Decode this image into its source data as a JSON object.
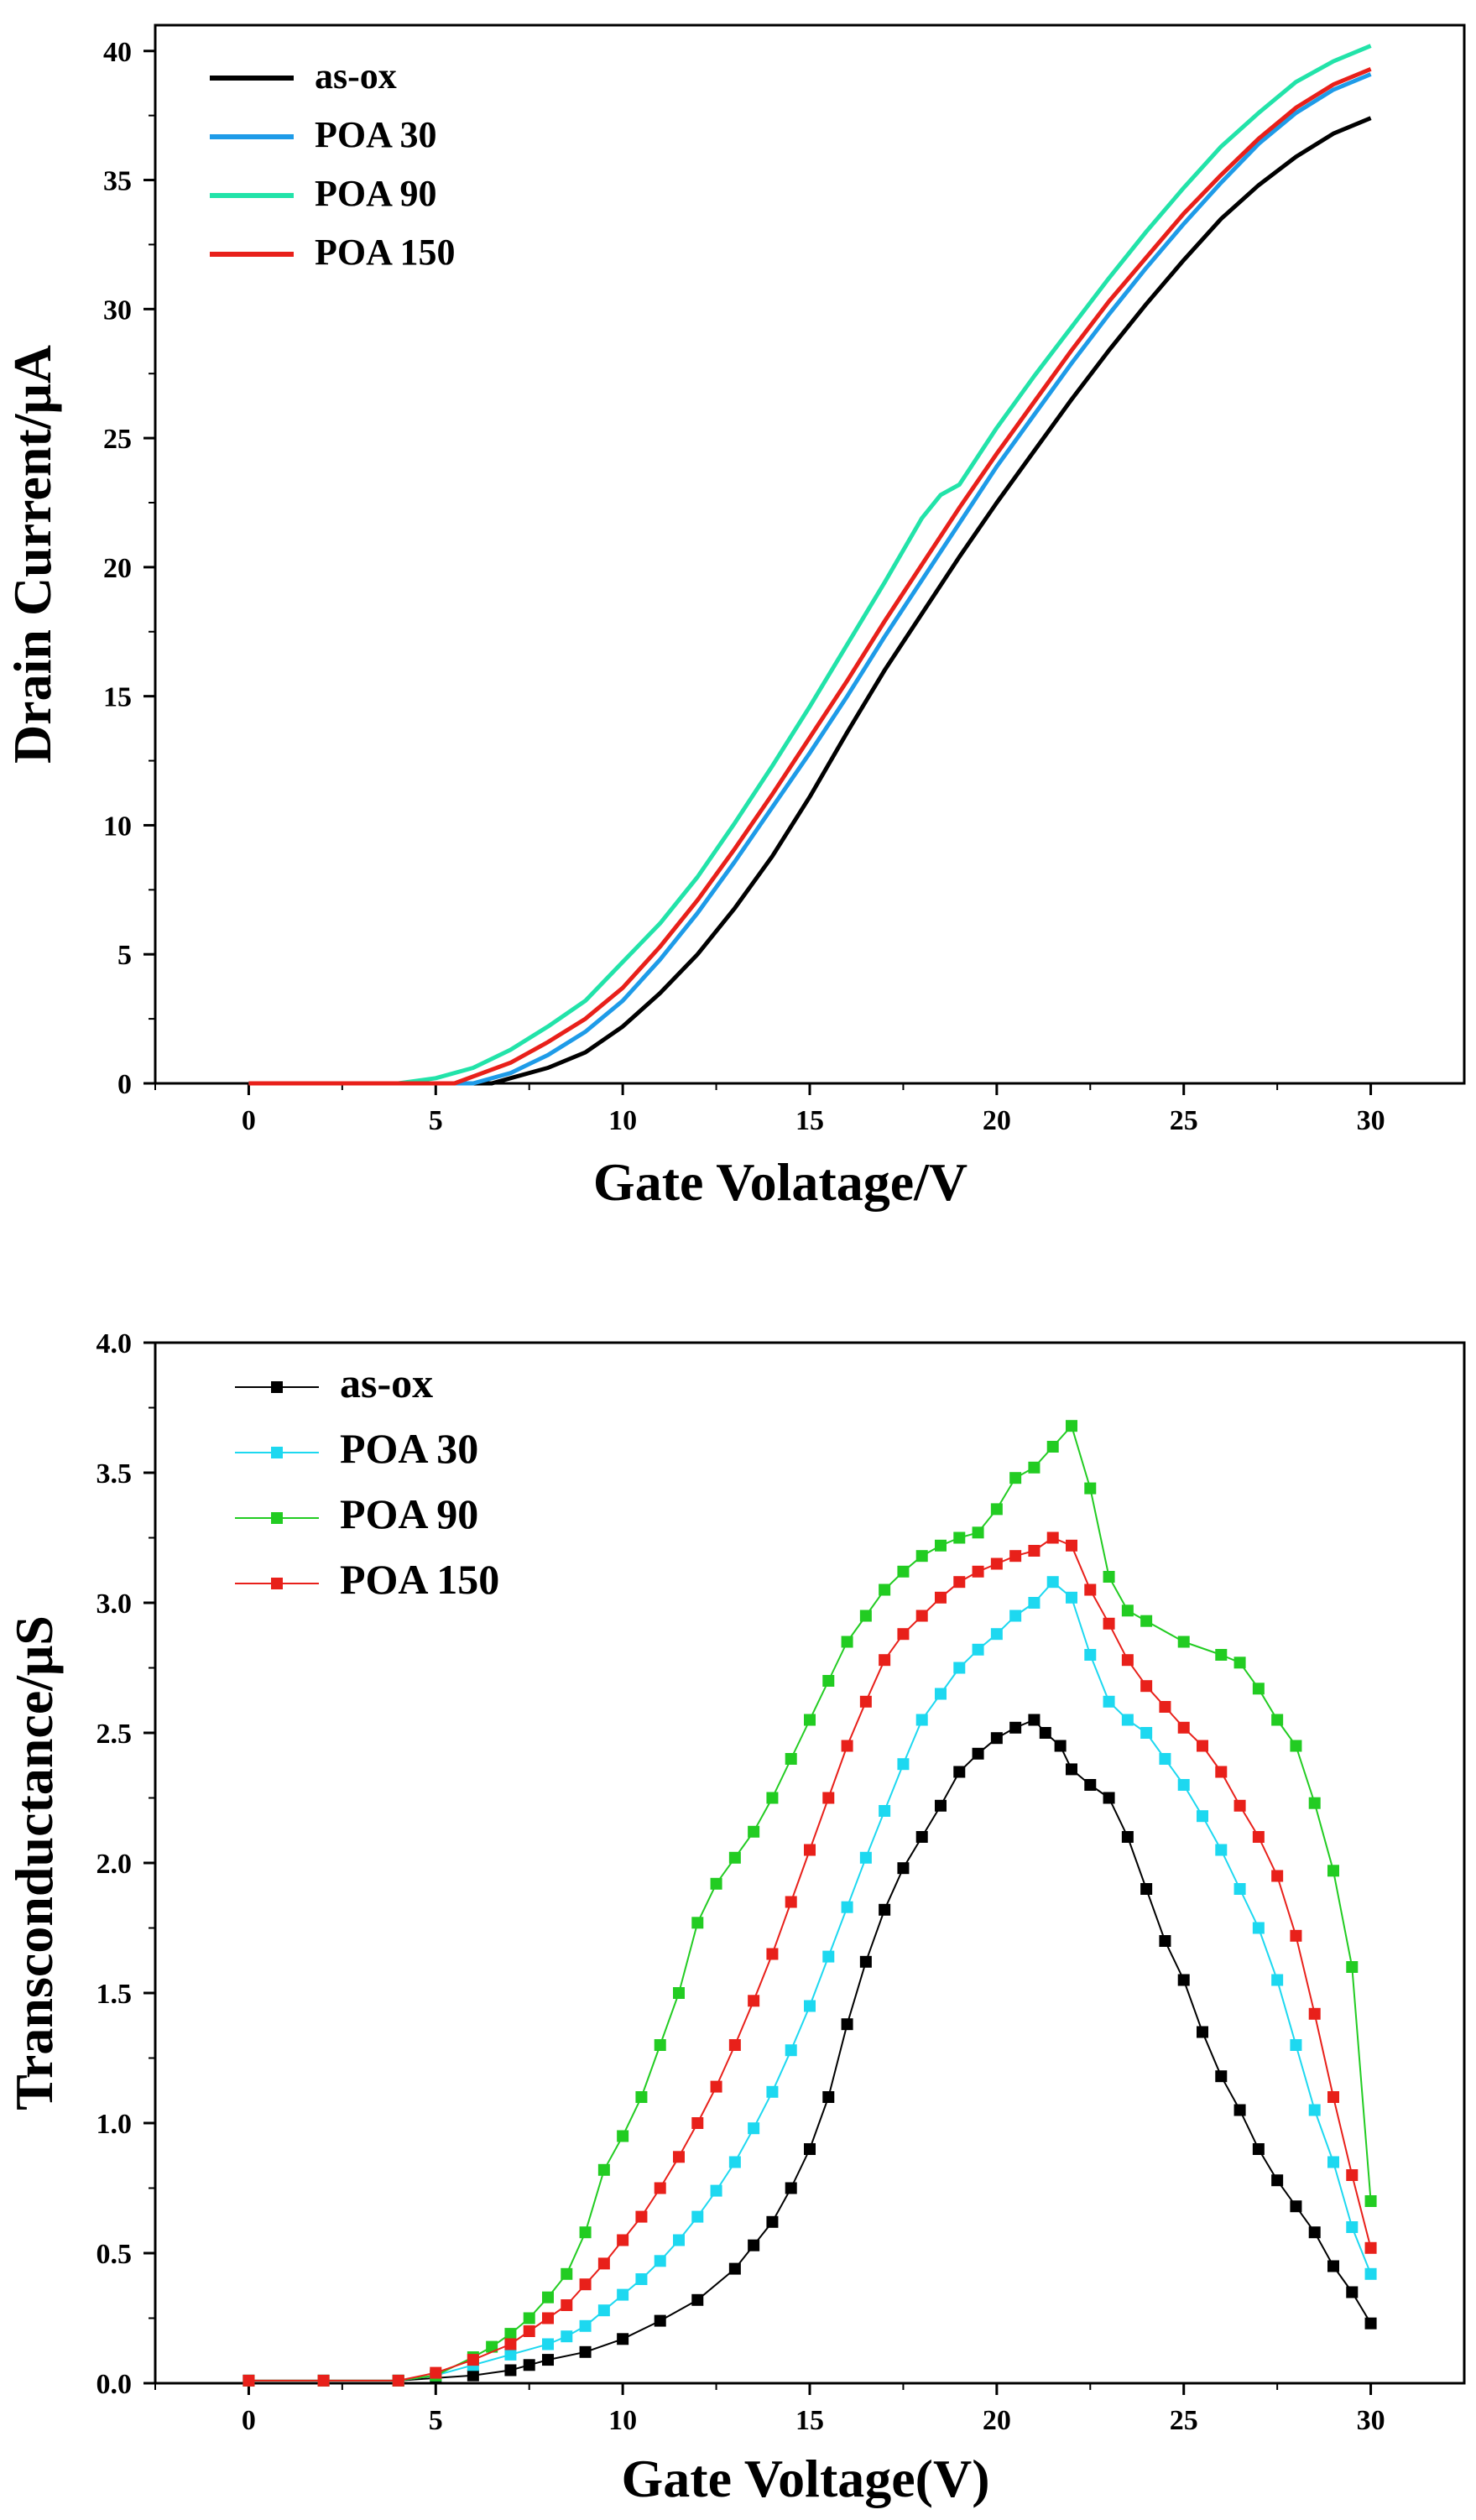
{
  "chart_data": [
    {
      "type": "line",
      "title": "",
      "xlabel": "Gate Volatage/V",
      "ylabel": "Drain Current/μA",
      "xlim": [
        -2.5,
        32.5
      ],
      "ylim": [
        0,
        41
      ],
      "xticks": [
        "0",
        "5",
        "10",
        "15",
        "20",
        "25",
        "30"
      ],
      "yticks": [
        "0",
        "5",
        "10",
        "15",
        "20",
        "25",
        "30",
        "35",
        "40"
      ],
      "legend_position": "top-left",
      "series": [
        {
          "name": "as-ox",
          "color": "#000000",
          "x": [
            0,
            4,
            6.5,
            7,
            8,
            9,
            10,
            11,
            12,
            13,
            14,
            15,
            16,
            17,
            18,
            19,
            20,
            21,
            22,
            23,
            24,
            25,
            26,
            27,
            28,
            29,
            30
          ],
          "y": [
            0,
            0,
            0,
            0.2,
            0.6,
            1.2,
            2.2,
            3.5,
            5,
            6.8,
            8.8,
            11.1,
            13.6,
            16.0,
            18.2,
            20.4,
            22.5,
            24.5,
            26.5,
            28.4,
            30.2,
            31.9,
            33.5,
            34.8,
            35.9,
            36.8,
            37.4
          ]
        },
        {
          "name": "POA 30",
          "color": "#1E9BE8",
          "x": [
            0,
            4,
            6,
            7,
            8,
            9,
            10,
            11,
            12,
            13,
            14,
            15,
            16,
            17,
            18,
            19,
            20,
            21,
            22,
            23,
            24,
            25,
            26,
            27,
            28,
            29,
            30
          ],
          "y": [
            0,
            0,
            0,
            0.4,
            1.1,
            2.0,
            3.2,
            4.8,
            6.6,
            8.6,
            10.7,
            12.8,
            15.0,
            17.3,
            19.5,
            21.7,
            23.9,
            25.9,
            27.9,
            29.8,
            31.6,
            33.3,
            34.9,
            36.4,
            37.6,
            38.5,
            39.1
          ]
        },
        {
          "name": "POA 90",
          "color": "#22E3A9",
          "x": [
            0,
            4,
            5,
            6,
            7,
            8,
            9,
            10,
            11,
            12,
            13,
            14,
            15,
            16,
            17,
            18,
            18.5,
            19,
            20,
            21,
            22,
            23,
            24,
            25,
            26,
            27,
            28,
            29,
            30
          ],
          "y": [
            0,
            0,
            0.2,
            0.6,
            1.3,
            2.2,
            3.2,
            4.7,
            6.2,
            8.0,
            10.1,
            12.3,
            14.6,
            17.0,
            19.4,
            21.9,
            22.8,
            23.2,
            25.4,
            27.4,
            29.3,
            31.2,
            33.0,
            34.7,
            36.3,
            37.6,
            38.8,
            39.6,
            40.2
          ]
        },
        {
          "name": "POA 150",
          "color": "#E8201A",
          "x": [
            0,
            4,
            5.5,
            7,
            8,
            9,
            10,
            11,
            12,
            13,
            14,
            15,
            16,
            17,
            18,
            19,
            20,
            21,
            22,
            23,
            24,
            25,
            26,
            27,
            28,
            29,
            30
          ],
          "y": [
            0,
            0,
            0,
            0.8,
            1.6,
            2.5,
            3.7,
            5.3,
            7.1,
            9.1,
            11.2,
            13.4,
            15.6,
            17.9,
            20.1,
            22.3,
            24.4,
            26.4,
            28.4,
            30.3,
            32.0,
            33.7,
            35.2,
            36.6,
            37.8,
            38.7,
            39.3
          ]
        }
      ]
    },
    {
      "type": "line",
      "title": "",
      "xlabel": "Gate Voltage(V)",
      "ylabel": "Transconductance/μS",
      "xlim": [
        -2.5,
        32.5
      ],
      "ylim": [
        0,
        4.0
      ],
      "xticks": [
        "0",
        "5",
        "10",
        "15",
        "20",
        "25",
        "30"
      ],
      "yticks": [
        "0.0",
        "0.5",
        "1.0",
        "1.5",
        "2.0",
        "2.5",
        "3.0",
        "3.5",
        "4.0"
      ],
      "legend_position": "top-left",
      "series": [
        {
          "name": "as-ox",
          "color": "#000000",
          "x": [
            0,
            2,
            4,
            5,
            6,
            7,
            7.5,
            8,
            9,
            10,
            11,
            12,
            13,
            13.5,
            14,
            14.5,
            15,
            15.5,
            16,
            16.5,
            17,
            17.5,
            18,
            18.5,
            19,
            19.5,
            20,
            20.5,
            21,
            21.3,
            21.7,
            22,
            22.5,
            23,
            23.5,
            24,
            24.5,
            25,
            25.5,
            26,
            26.5,
            27,
            27.5,
            28,
            28.5,
            29,
            29.5,
            30
          ],
          "y": [
            0.01,
            0.01,
            0.01,
            0.02,
            0.03,
            0.05,
            0.07,
            0.09,
            0.12,
            0.17,
            0.24,
            0.32,
            0.44,
            0.53,
            0.62,
            0.75,
            0.9,
            1.1,
            1.38,
            1.62,
            1.82,
            1.98,
            2.1,
            2.22,
            2.35,
            2.42,
            2.48,
            2.52,
            2.55,
            2.5,
            2.45,
            2.36,
            2.3,
            2.25,
            2.1,
            1.9,
            1.7,
            1.55,
            1.35,
            1.18,
            1.05,
            0.9,
            0.78,
            0.68,
            0.58,
            0.45,
            0.35,
            0.23
          ]
        },
        {
          "name": "POA 30",
          "color": "#1DD8F0",
          "x": [
            0,
            2,
            4,
            5,
            6,
            7,
            8,
            8.5,
            9,
            9.5,
            10,
            10.5,
            11,
            11.5,
            12,
            12.5,
            13,
            13.5,
            14,
            14.5,
            15,
            15.5,
            16,
            16.5,
            17,
            17.5,
            18,
            18.5,
            19,
            19.5,
            20,
            20.5,
            21,
            21.5,
            22,
            22.5,
            23,
            23.5,
            24,
            24.5,
            25,
            25.5,
            26,
            26.5,
            27,
            27.5,
            28,
            28.5,
            29,
            29.5,
            30
          ],
          "y": [
            0.01,
            0.01,
            0.01,
            0.03,
            0.07,
            0.11,
            0.15,
            0.18,
            0.22,
            0.28,
            0.34,
            0.4,
            0.47,
            0.55,
            0.64,
            0.74,
            0.85,
            0.98,
            1.12,
            1.28,
            1.45,
            1.64,
            1.83,
            2.02,
            2.2,
            2.38,
            2.55,
            2.65,
            2.75,
            2.82,
            2.88,
            2.95,
            3.0,
            3.08,
            3.02,
            2.8,
            2.62,
            2.55,
            2.5,
            2.4,
            2.3,
            2.18,
            2.05,
            1.9,
            1.75,
            1.55,
            1.3,
            1.05,
            0.85,
            0.6,
            0.42
          ]
        },
        {
          "name": "POA 90",
          "color": "#22CC22",
          "x": [
            0,
            2,
            4,
            5,
            6,
            6.5,
            7,
            7.5,
            8,
            8.5,
            9,
            9.5,
            10,
            10.5,
            11,
            11.5,
            12,
            12.5,
            13,
            13.5,
            14,
            14.5,
            15,
            15.5,
            16,
            16.5,
            17,
            17.5,
            18,
            18.5,
            19,
            19.5,
            20,
            20.5,
            21,
            21.5,
            22,
            22.5,
            23,
            23.5,
            24,
            25,
            26,
            26.5,
            27,
            27.5,
            28,
            28.5,
            29,
            29.5,
            30
          ],
          "y": [
            0.01,
            0.01,
            0.01,
            0.03,
            0.1,
            0.14,
            0.19,
            0.25,
            0.33,
            0.42,
            0.58,
            0.82,
            0.95,
            1.1,
            1.3,
            1.5,
            1.77,
            1.92,
            2.02,
            2.12,
            2.25,
            2.4,
            2.55,
            2.7,
            2.85,
            2.95,
            3.05,
            3.12,
            3.18,
            3.22,
            3.25,
            3.27,
            3.36,
            3.48,
            3.52,
            3.6,
            3.68,
            3.44,
            3.1,
            2.97,
            2.93,
            2.85,
            2.8,
            2.77,
            2.67,
            2.55,
            2.45,
            2.23,
            1.97,
            1.6,
            0.7
          ]
        },
        {
          "name": "POA 150",
          "color": "#E8201A",
          "x": [
            0,
            2,
            4,
            5,
            6,
            7,
            7.5,
            8,
            8.5,
            9,
            9.5,
            10,
            10.5,
            11,
            11.5,
            12,
            12.5,
            13,
            13.5,
            14,
            14.5,
            15,
            15.5,
            16,
            16.5,
            17,
            17.5,
            18,
            18.5,
            19,
            19.5,
            20,
            20.5,
            21,
            21.5,
            22,
            22.5,
            23,
            23.5,
            24,
            24.5,
            25,
            25.5,
            26,
            26.5,
            27,
            27.5,
            28,
            28.5,
            29,
            29.5,
            30
          ],
          "y": [
            0.01,
            0.01,
            0.01,
            0.04,
            0.09,
            0.15,
            0.2,
            0.25,
            0.3,
            0.38,
            0.46,
            0.55,
            0.64,
            0.75,
            0.87,
            1.0,
            1.14,
            1.3,
            1.47,
            1.65,
            1.85,
            2.05,
            2.25,
            2.45,
            2.62,
            2.78,
            2.88,
            2.95,
            3.02,
            3.08,
            3.12,
            3.15,
            3.18,
            3.2,
            3.25,
            3.22,
            3.05,
            2.92,
            2.78,
            2.68,
            2.6,
            2.52,
            2.45,
            2.35,
            2.22,
            2.1,
            1.95,
            1.72,
            1.42,
            1.1,
            0.8,
            0.52
          ]
        }
      ]
    }
  ]
}
